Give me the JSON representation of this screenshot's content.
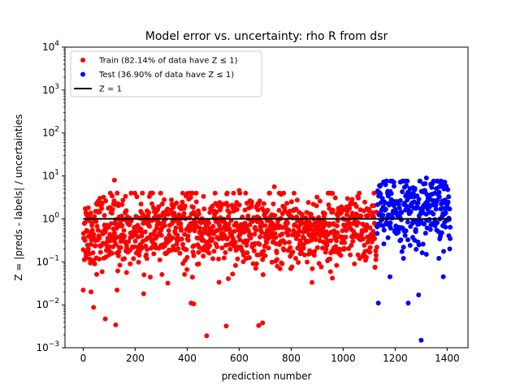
{
  "chart_data": {
    "type": "scatter",
    "title": "Model error vs. uncertainty: rho R from dsr",
    "xlabel": "prediction number",
    "ylabel": "Z = |preds - labels| / uncertainties",
    "xlim": [
      -70,
      1480
    ],
    "ylim": [
      0.001,
      10000
    ],
    "yscale": "log",
    "xticks": [
      0,
      200,
      400,
      600,
      800,
      1000,
      1200,
      1400
    ],
    "xtick_labels": [
      "0",
      "200",
      "400",
      "600",
      "800",
      "1000",
      "1200",
      "1400"
    ],
    "yticks": [
      0.001,
      0.01,
      0.1,
      1,
      10,
      100,
      1000,
      10000
    ],
    "ytick_labels": [
      {
        "base": "10",
        "exp": "−3"
      },
      {
        "base": "10",
        "exp": "−2"
      },
      {
        "base": "10",
        "exp": "−1"
      },
      {
        "base": "10",
        "exp": "0"
      },
      {
        "base": "10",
        "exp": "1"
      },
      {
        "base": "10",
        "exp": "2"
      },
      {
        "base": "10",
        "exp": "3"
      },
      {
        "base": "10",
        "exp": "4"
      }
    ],
    "legend_position": "top-left",
    "series": [
      {
        "name": "Train (82.14% of data have Z ≤ 1)",
        "color": "#ff0000",
        "count": 1130,
        "x_range": [
          0,
          1130
        ],
        "fraction_below_one": 0.8214,
        "notable_points": [
          {
            "x": 120,
            "y": 8.0
          },
          {
            "x": 735,
            "y": 5.6
          },
          {
            "x": 600,
            "y": 4.6
          },
          {
            "x": 85,
            "y": 0.0047
          },
          {
            "x": 125,
            "y": 0.0034
          },
          {
            "x": 475,
            "y": 0.0019
          },
          {
            "x": 550,
            "y": 0.0032
          },
          {
            "x": 675,
            "y": 0.0033
          },
          {
            "x": 690,
            "y": 0.0038
          },
          {
            "x": 40,
            "y": 0.0087
          },
          {
            "x": 415,
            "y": 0.011
          },
          {
            "x": 425,
            "y": 0.0105
          },
          {
            "x": 0,
            "y": 0.022
          },
          {
            "x": 30,
            "y": 0.02
          },
          {
            "x": 130,
            "y": 0.022
          }
        ]
      },
      {
        "name": "Test (36.90% of data have Z ≤ 1)",
        "color": "#0000ff",
        "count": 282,
        "x_range": [
          1130,
          1412
        ],
        "fraction_below_one": 0.369,
        "notable_points": [
          {
            "x": 1300,
            "y": 0.0015
          },
          {
            "x": 1250,
            "y": 0.011
          },
          {
            "x": 1135,
            "y": 0.011
          },
          {
            "x": 1320,
            "y": 9.0
          },
          {
            "x": 1290,
            "y": 0.017
          },
          {
            "x": 1385,
            "y": 0.045
          },
          {
            "x": 1180,
            "y": 0.045
          }
        ]
      },
      {
        "name": "Z = 1",
        "type": "line",
        "color": "#000000",
        "x": [
          0,
          1412
        ],
        "y": [
          1,
          1
        ]
      }
    ]
  }
}
